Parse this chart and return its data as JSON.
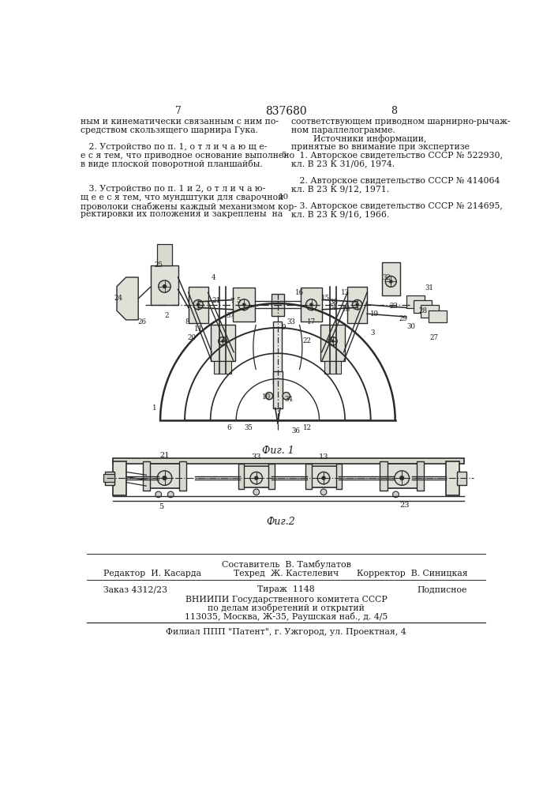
{
  "bg_color": "#ffffff",
  "text_color": "#1a1a1a",
  "draw_color": "#2a2a2a",
  "title_number": "837680",
  "page_left": "7",
  "page_right": "8",
  "left_col_lines": [
    "ным и кинематически связанным с ним по-",
    "средством скользящего шарнира Гука.",
    "",
    "   2. Устройство по п. 1, о т л и ч а ю щ е-",
    "е с я тем, что приводное основание выполнено",
    "в виде плоской поворотной планшайбы.",
    "",
    "",
    "   3. Устройство по п. 1 и 2, о т л и ч а ю-",
    "щ е е с я тем, что мундштуки для сварочной",
    "проволоки снабжены каждый механизмом кор-",
    "ректировки их положения и закреплены  на"
  ],
  "right_col_lines": [
    "соответствующем приводном шарнирно-рычаж-",
    "ном параллелограмме.",
    "        Источники информации,",
    "принятые во внимание при экспертизе",
    "   1. Авторское свидетельство СССР № 522930,",
    "кл. В 23 К 31/06, 1974.",
    "",
    "   2. Авторское свидетельство СССР № 414064",
    "кл. В 23 К 9/12, 1971.",
    "",
    "   3. Авторское свидетельство СССР № 214695,",
    "кл. В 23 К 9/16, 1966."
  ],
  "fig1_caption": "Фиг. 1",
  "fig2_caption": "Фиг.2",
  "footer_composer": "Составитель  В. Тамбулатов",
  "footer_editor": "Редактор  И. Касарда",
  "footer_techred": "Техред  Ж. Кастелевич",
  "footer_corrector": "Корректор  В. Синицкая",
  "footer_order": "Заказ 4312/23",
  "footer_print": "Тираж  1148",
  "footer_sub": "Подписное",
  "footer_org1": "ВНИИПИ Государственного комитета СССР",
  "footer_org2": "по делам изобретений и открытий",
  "footer_addr": "113035, Москва, Ж-35, Раушская наб., д. 4/5",
  "footer_branch": "Филиал ППП \"Патент\", г. Ужгород, ул. Проектная, 4"
}
